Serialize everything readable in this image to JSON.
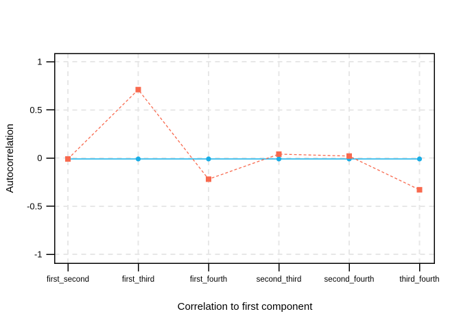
{
  "figure": {
    "background": "#ffffff",
    "border_color": "#000000",
    "text_color": "#000000"
  },
  "chart_data": {
    "type": "line",
    "title": "",
    "xlabel": "Correlation to first component",
    "ylabel": "Autocorrelation",
    "categories": [
      "first_second",
      "first_third",
      "first_fourth",
      "second_third",
      "second_fourth",
      "third_fourth"
    ],
    "y_ticks": [
      1,
      0.5,
      0,
      -0.5,
      -1
    ],
    "y_tick_labels": [
      "1",
      "0.5",
      "0",
      "-0.5",
      "-1"
    ],
    "ylim": [
      -1.09,
      1.09
    ],
    "grid": "dashed",
    "grid_color": "#e7e7e7",
    "legend_position": "none",
    "series": [
      {
        "name": "cyan-solid-circles",
        "line_color": "#33bbec",
        "marker_color": "#18ade6",
        "marker": "circle",
        "line_style": "solid",
        "values": [
          -0.01,
          -0.01,
          -0.01,
          -0.01,
          -0.01,
          -0.01
        ]
      },
      {
        "name": "red-dashed-squares",
        "line_color": "#f8694e",
        "marker_color": "#f8694e",
        "marker": "square",
        "line_style": "dashed",
        "values": [
          -0.01,
          0.71,
          -0.22,
          0.04,
          0.02,
          -0.33
        ]
      }
    ]
  }
}
